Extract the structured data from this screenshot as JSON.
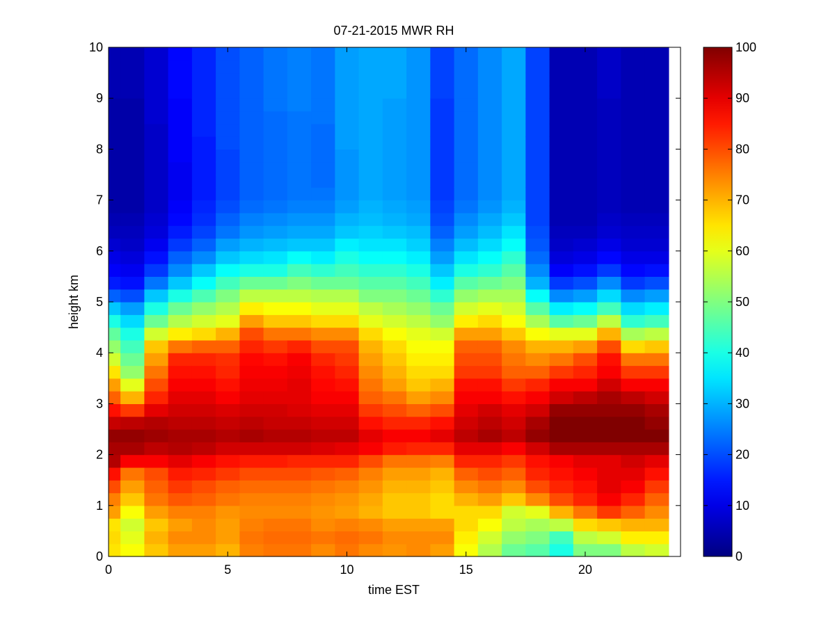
{
  "chart_data": {
    "type": "heatmap",
    "title": "07-21-2015 MWR RH",
    "xlabel": "time EST",
    "ylabel": "height km",
    "xlim": [
      0,
      24
    ],
    "ylim": [
      0,
      10
    ],
    "xticks": [
      0,
      5,
      10,
      15,
      20
    ],
    "yticks": [
      0,
      1,
      2,
      3,
      4,
      5,
      6,
      7,
      8,
      9,
      10
    ],
    "colorbar": {
      "min": 0,
      "max": 100,
      "ticks": [
        0,
        10,
        20,
        30,
        40,
        50,
        60,
        70,
        80,
        90,
        100
      ],
      "colormap": "jet"
    },
    "grid": false,
    "x_hours": [
      0,
      1,
      2,
      3,
      4,
      5,
      6,
      7,
      8,
      9,
      10,
      11,
      12,
      13,
      14,
      15,
      16,
      17,
      18,
      19,
      20,
      21,
      22,
      23
    ],
    "height_levels_km": [
      0,
      0.25,
      0.5,
      0.75,
      1,
      1.25,
      1.5,
      1.75,
      2,
      2.25,
      2.5,
      2.75,
      3,
      3.25,
      3.5,
      3.75,
      4,
      4.25,
      4.5,
      4.75,
      5,
      5.25,
      5.5,
      5.75,
      6,
      6.25,
      6.5,
      6.75,
      7,
      7.25,
      7.5,
      7.75,
      8,
      8.25,
      8.5,
      8.75,
      9,
      9.25,
      9.5,
      9.75
    ],
    "profiles": [
      {
        "hour": 0,
        "rh": [
          65,
          66,
          65,
          72,
          75,
          80,
          86,
          95,
          96,
          98,
          93,
          86,
          78,
          72,
          65,
          58,
          52,
          47,
          40,
          32,
          22,
          15,
          12,
          10,
          8,
          6,
          5,
          4,
          4,
          4,
          4,
          4,
          4,
          4,
          4,
          4,
          5,
          5,
          5,
          5
        ]
      },
      {
        "hour": 1,
        "rh": [
          62,
          60,
          58,
          62,
          68,
          72,
          76,
          88,
          96,
          98,
          94,
          82,
          70,
          60,
          52,
          48,
          44,
          40,
          34,
          28,
          20,
          14,
          11,
          9,
          7,
          6,
          5,
          4,
          4,
          4,
          4,
          4,
          4,
          4,
          4,
          4,
          5,
          5,
          5,
          5
        ]
      },
      {
        "hour": 2,
        "rh": [
          68,
          70,
          68,
          72,
          76,
          78,
          80,
          88,
          94,
          97,
          95,
          90,
          84,
          80,
          76,
          72,
          68,
          58,
          48,
          40,
          32,
          24,
          18,
          14,
          11,
          9,
          8,
          7,
          7,
          7,
          7,
          7,
          7,
          7,
          8,
          8,
          8,
          8,
          8,
          8
        ]
      },
      {
        "hour": 3,
        "rh": [
          72,
          74,
          72,
          75,
          79,
          82,
          85,
          90,
          95,
          96,
          94,
          92,
          90,
          88,
          86,
          84,
          76,
          64,
          55,
          48,
          40,
          32,
          26,
          22,
          18,
          15,
          13,
          12,
          11,
          11,
          11,
          12,
          12,
          12,
          12,
          12,
          13,
          13,
          13,
          13
        ]
      },
      {
        "hour": 4,
        "rh": [
          72,
          74,
          74,
          75,
          78,
          80,
          84,
          88,
          94,
          96,
          94,
          92,
          90,
          88,
          86,
          84,
          78,
          66,
          58,
          52,
          45,
          38,
          32,
          26,
          22,
          19,
          17,
          16,
          15,
          15,
          15,
          15,
          15,
          16,
          16,
          16,
          16,
          16,
          16,
          16
        ]
      },
      {
        "hour": 5,
        "rh": [
          70,
          72,
          72,
          73,
          76,
          78,
          82,
          86,
          92,
          95,
          93,
          91,
          88,
          86,
          84,
          83,
          78,
          70,
          60,
          55,
          50,
          44,
          38,
          32,
          28,
          24,
          22,
          20,
          19,
          19,
          19,
          19,
          20,
          20,
          20,
          20,
          20,
          20,
          20,
          20
        ]
      },
      {
        "hour": 6,
        "rh": [
          75,
          76,
          75,
          74,
          75,
          77,
          80,
          85,
          92,
          96,
          94,
          92,
          90,
          89,
          88,
          87,
          84,
          80,
          72,
          64,
          56,
          48,
          40,
          34,
          30,
          27,
          25,
          23,
          22,
          22,
          22,
          22,
          22,
          22,
          22,
          22,
          22,
          22,
          22,
          22
        ]
      },
      {
        "hour": 7,
        "rh": [
          76,
          77,
          76,
          74,
          75,
          77,
          80,
          85,
          92,
          95,
          93,
          92,
          90,
          89,
          88,
          86,
          82,
          76,
          68,
          62,
          56,
          48,
          40,
          35,
          31,
          28,
          26,
          24,
          23,
          23,
          23,
          23,
          23,
          23,
          23,
          24,
          24,
          24,
          24,
          24
        ]
      },
      {
        "hour": 8,
        "rh": [
          76,
          77,
          76,
          74,
          75,
          77,
          80,
          84,
          92,
          95,
          93,
          91,
          90,
          90,
          89,
          88,
          84,
          76,
          68,
          62,
          56,
          50,
          44,
          38,
          32,
          29,
          27,
          25,
          24,
          24,
          24,
          24,
          24,
          24,
          24,
          25,
          25,
          25,
          25,
          25
        ]
      },
      {
        "hour": 9,
        "rh": [
          74,
          76,
          74,
          73,
          74,
          76,
          79,
          84,
          91,
          94,
          92,
          90,
          88,
          87,
          86,
          84,
          80,
          74,
          66,
          60,
          55,
          48,
          42,
          36,
          32,
          29,
          27,
          25,
          24,
          23,
          23,
          23,
          23,
          23,
          24,
          24,
          24,
          24,
          24,
          24
        ]
      },
      {
        "hour": 10,
        "rh": [
          76,
          77,
          75,
          72,
          73,
          75,
          78,
          84,
          90,
          94,
          92,
          90,
          88,
          86,
          84,
          82,
          80,
          74,
          66,
          60,
          55,
          48,
          44,
          40,
          36,
          32,
          30,
          28,
          27,
          27,
          27,
          27,
          28,
          28,
          28,
          28,
          28,
          28,
          28,
          28
        ]
      },
      {
        "hour": 11,
        "rh": [
          74,
          76,
          74,
          70,
          71,
          73,
          75,
          80,
          88,
          90,
          86,
          82,
          78,
          76,
          74,
          72,
          70,
          66,
          60,
          56,
          50,
          46,
          42,
          38,
          35,
          33,
          31,
          30,
          29,
          29,
          29,
          29,
          29,
          29,
          29,
          29,
          29,
          29,
          29,
          29
        ]
      },
      {
        "hour": 12,
        "rh": [
          73,
          74,
          72,
          68,
          68,
          70,
          72,
          76,
          85,
          88,
          84,
          80,
          76,
          72,
          70,
          68,
          66,
          62,
          58,
          54,
          50,
          46,
          42,
          38,
          35,
          32,
          30,
          29,
          28,
          28,
          28,
          28,
          28,
          28,
          28,
          28,
          29,
          29,
          29,
          29
        ]
      },
      {
        "hour": 13,
        "rh": [
          74,
          74,
          72,
          68,
          68,
          70,
          72,
          76,
          84,
          88,
          84,
          78,
          72,
          68,
          66,
          64,
          62,
          60,
          56,
          52,
          48,
          44,
          40,
          36,
          33,
          31,
          29,
          28,
          27,
          27,
          27,
          27,
          27,
          27,
          27,
          27,
          27,
          27,
          27,
          27
        ]
      },
      {
        "hour": 14,
        "rh": [
          72,
          74,
          72,
          66,
          66,
          68,
          70,
          75,
          84,
          90,
          86,
          80,
          74,
          70,
          66,
          64,
          62,
          58,
          52,
          48,
          42,
          36,
          32,
          28,
          25,
          22,
          20,
          19,
          18,
          18,
          18,
          18,
          18,
          18,
          18,
          18,
          19,
          19,
          19,
          19
        ]
      },
      {
        "hour": 15,
        "rh": [
          62,
          64,
          66,
          66,
          70,
          74,
          78,
          84,
          90,
          94,
          92,
          90,
          88,
          86,
          82,
          80,
          78,
          72,
          64,
          58,
          52,
          46,
          40,
          35,
          31,
          28,
          26,
          24,
          23,
          23,
          23,
          23,
          23,
          23,
          23,
          23,
          23,
          23,
          23,
          23
        ]
      },
      {
        "hour": 16,
        "rh": [
          55,
          58,
          62,
          66,
          72,
          76,
          80,
          84,
          90,
          96,
          94,
          92,
          88,
          86,
          82,
          80,
          78,
          72,
          66,
          60,
          54,
          48,
          42,
          38,
          34,
          31,
          29,
          27,
          26,
          26,
          26,
          26,
          26,
          26,
          26,
          26,
          26,
          26,
          26,
          26
        ]
      },
      {
        "hour": 17,
        "rh": [
          48,
          52,
          56,
          58,
          68,
          74,
          78,
          82,
          88,
          94,
          92,
          90,
          86,
          82,
          78,
          76,
          74,
          68,
          62,
          58,
          54,
          50,
          46,
          42,
          38,
          35,
          32,
          30,
          29,
          29,
          29,
          29,
          29,
          29,
          29,
          29,
          29,
          29,
          29,
          29
        ]
      },
      {
        "hour": 18,
        "rh": [
          46,
          50,
          54,
          60,
          74,
          80,
          84,
          86,
          92,
          98,
          96,
          92,
          88,
          84,
          78,
          74,
          70,
          62,
          54,
          46,
          38,
          30,
          26,
          23,
          21,
          20,
          19,
          19,
          19,
          19,
          19,
          19,
          19,
          19,
          19,
          19,
          19,
          19,
          19,
          19
        ]
      },
      {
        "hour": 19,
        "rh": [
          40,
          44,
          56,
          70,
          80,
          84,
          86,
          88,
          96,
          100,
          100,
          98,
          92,
          88,
          82,
          76,
          70,
          60,
          46,
          36,
          26,
          18,
          12,
          9,
          7,
          6,
          5,
          5,
          5,
          5,
          5,
          5,
          5,
          5,
          5,
          5,
          5,
          5,
          5,
          5
        ]
      },
      {
        "hour": 20,
        "rh": [
          50,
          56,
          66,
          76,
          84,
          86,
          88,
          90,
          96,
          100,
          100,
          98,
          94,
          88,
          84,
          80,
          72,
          60,
          48,
          38,
          28,
          20,
          14,
          10,
          8,
          6,
          5,
          5,
          5,
          5,
          5,
          5,
          5,
          5,
          5,
          5,
          5,
          5,
          5,
          5
        ]
      },
      {
        "hour": 21,
        "rh": [
          50,
          58,
          68,
          82,
          88,
          90,
          90,
          90,
          96,
          100,
          100,
          98,
          96,
          92,
          88,
          86,
          80,
          70,
          56,
          44,
          34,
          26,
          18,
          13,
          10,
          8,
          7,
          6,
          6,
          6,
          6,
          6,
          6,
          6,
          6,
          6,
          7,
          7,
          7,
          7
        ]
      },
      {
        "hour": 22,
        "rh": [
          56,
          64,
          70,
          78,
          84,
          88,
          90,
          92,
          96,
          100,
          100,
          98,
          94,
          88,
          82,
          76,
          66,
          54,
          42,
          34,
          26,
          18,
          13,
          10,
          8,
          7,
          6,
          5,
          5,
          5,
          5,
          5,
          5,
          5,
          5,
          5,
          5,
          5,
          5,
          5
        ]
      },
      {
        "hour": 23,
        "rh": [
          58,
          64,
          70,
          74,
          78,
          82,
          86,
          90,
          96,
          100,
          98,
          96,
          92,
          88,
          82,
          76,
          68,
          56,
          44,
          36,
          28,
          20,
          14,
          10,
          8,
          7,
          6,
          5,
          5,
          5,
          5,
          5,
          5,
          5,
          5,
          5,
          5,
          5,
          5,
          5
        ]
      }
    ]
  }
}
